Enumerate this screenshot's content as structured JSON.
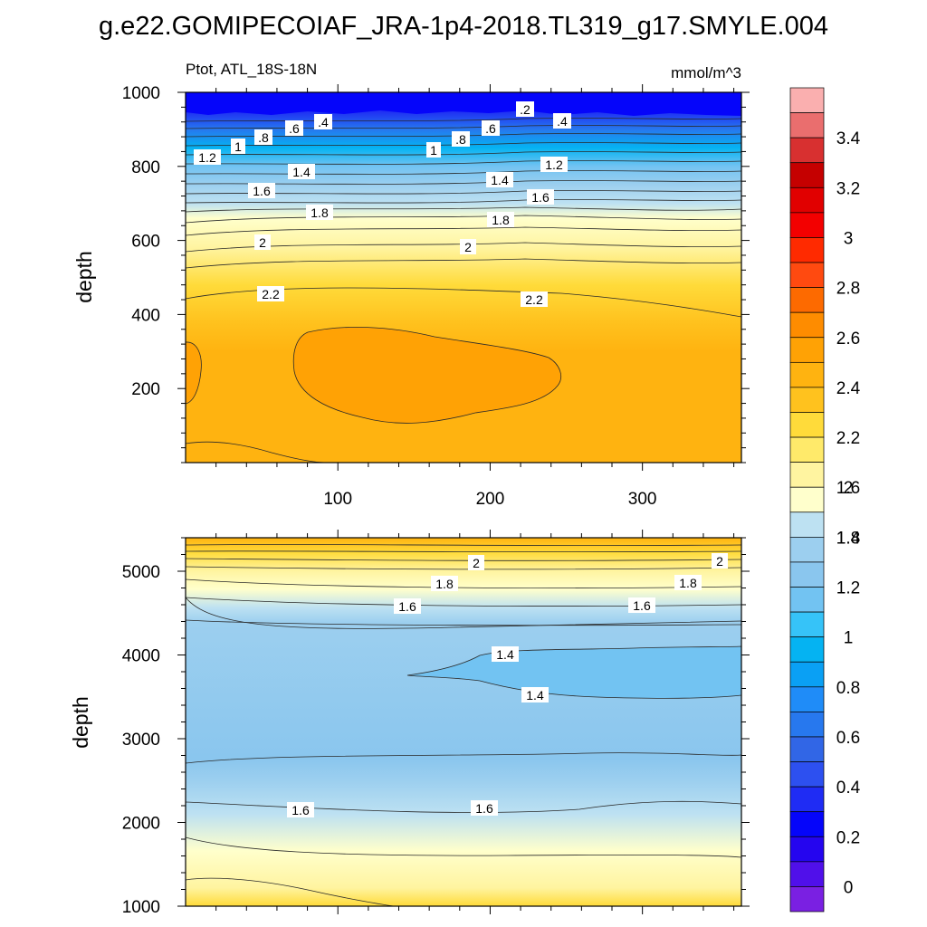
{
  "figure": {
    "title": "g.e22.GOMIPECOIAF_JRA-1p4-2018.TL319_g17.SMYLE.004"
  },
  "chart_data": [
    {
      "type": "contour",
      "left_string": "Ptot, ATL_18S-18N",
      "right_string": "mmol/m^3",
      "xlabel": "",
      "ylabel": "depth",
      "xlim": [
        0,
        365
      ],
      "ylim": [
        1000,
        0
      ],
      "xticks": [
        100,
        200,
        300
      ],
      "yticks": [
        200,
        400,
        600,
        800,
        1000
      ],
      "contour_labels": [
        {
          "text": ".2",
          "x": 230,
          "y": 55
        },
        {
          "text": ".4",
          "x": 247,
          "y": 120
        },
        {
          "text": ".4",
          "x": 88,
          "y": 105
        },
        {
          "text": ".6",
          "x": 72,
          "y": 125
        },
        {
          "text": ".6",
          "x": 200,
          "y": 120
        },
        {
          "text": ".8",
          "x": 52,
          "y": 140
        },
        {
          "text": ".8",
          "x": 182,
          "y": 145
        },
        {
          "text": "1",
          "x": 35,
          "y": 160
        },
        {
          "text": "1",
          "x": 162,
          "y": 165
        },
        {
          "text": "1.2",
          "x": 14,
          "y": 180
        },
        {
          "text": "1.2",
          "x": 242,
          "y": 190
        },
        {
          "text": "1.4",
          "x": 76,
          "y": 200
        },
        {
          "text": "1.4",
          "x": 208,
          "y": 215
        },
        {
          "text": "1.6",
          "x": 50,
          "y": 245
        },
        {
          "text": "1.6",
          "x": 233,
          "y": 235
        },
        {
          "text": "1.8",
          "x": 88,
          "y": 285
        },
        {
          "text": "1.8",
          "x": 208,
          "y": 300
        },
        {
          "text": "2",
          "x": 50,
          "y": 365
        },
        {
          "text": "2",
          "x": 185,
          "y": 370
        },
        {
          "text": "2.2",
          "x": 56,
          "y": 535
        },
        {
          "text": "2.2",
          "x": 230,
          "y": 550
        }
      ]
    },
    {
      "type": "contour",
      "xlabel": "",
      "ylabel": "depth",
      "xlim": [
        0,
        365
      ],
      "ylim": [
        5400,
        1000
      ],
      "yticks": [
        1000,
        2000,
        3000,
        4000,
        5000
      ],
      "contour_labels": [
        {
          "text": "2",
          "x": 190,
          "y": 1300
        },
        {
          "text": "2",
          "x": 350,
          "y": 1280
        },
        {
          "text": "1.8",
          "x": 170,
          "y": 1550
        },
        {
          "text": "1.8",
          "x": 330,
          "y": 1560
        },
        {
          "text": "1.6",
          "x": 146,
          "y": 1830
        },
        {
          "text": "1.6",
          "x": 300,
          "y": 1830
        },
        {
          "text": "1.4",
          "x": 208,
          "y": 2400
        },
        {
          "text": "1.4",
          "x": 228,
          "y": 2800
        },
        {
          "text": "1.6",
          "x": 76,
          "y": 4230
        },
        {
          "text": "1.6",
          "x": 198,
          "y": 4210
        }
      ]
    }
  ],
  "colorbar": {
    "labels": [
      "3.4",
      "3.2",
      "3",
      "2.8",
      "2.6",
      "2.4",
      "2.2",
      "2",
      "1.8",
      "1.6",
      "1.4",
      "1.2",
      "1",
      "0.8",
      "0.6",
      "0.4",
      "0.2",
      "0"
    ],
    "colors": [
      "#faafaf",
      "#ea6e6e",
      "#d83030",
      "#c50000",
      "#e10000",
      "#f30000",
      "#ff2a00",
      "#ff4a10",
      "#fd6a00",
      "#fe8c00",
      "#ffa205",
      "#ffb310",
      "#ffc21e",
      "#ffdb3a",
      "#ffea6a",
      "#fff4a0",
      "#ffffcc",
      "#bde1f2",
      "#9ccfef",
      "#8ac6ee",
      "#72c3f2",
      "#36c3f8",
      "#05b3f2",
      "#0aa0f4",
      "#1f8cf8",
      "#2778ee",
      "#3166e6",
      "#2d50f0",
      "#1f2cf4",
      "#0505fa",
      "#2505ef",
      "#5010ea",
      "#7a20e2"
    ]
  }
}
